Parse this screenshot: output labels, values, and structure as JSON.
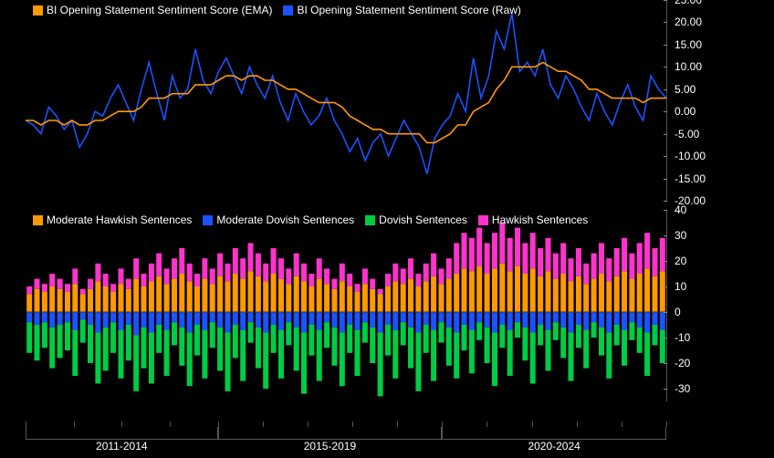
{
  "colors": {
    "background": "#000000",
    "text": "#ffffff",
    "axis": "#555555",
    "ema": "#ff9900",
    "raw": "#1a53ff",
    "mod_hawkish": "#ff9900",
    "mod_dovish": "#1a53ff",
    "dovish": "#00cc44",
    "hawkish": "#ff33cc"
  },
  "top_chart": {
    "type": "line",
    "legend": [
      {
        "label": "BI Opening Statement Sentiment Score (EMA)",
        "color": "#ff9900"
      },
      {
        "label": "BI Opening Statement Sentiment Score (Raw)",
        "color": "#1a53ff"
      }
    ],
    "ylim": [
      -20,
      25
    ],
    "ytick_step": 5,
    "yticks": [
      25,
      20,
      15,
      10,
      5,
      0,
      -5,
      -10,
      -15,
      -20
    ],
    "line_width_raw": 1.6,
    "line_width_ema": 1.6,
    "raw": [
      -2,
      -3,
      -5,
      1,
      -1,
      -4,
      -2,
      -8,
      -5,
      0,
      -1,
      3,
      6,
      2,
      -2,
      5,
      11,
      4,
      -2,
      8,
      3,
      5,
      14,
      7,
      4,
      9,
      12,
      8,
      4,
      10,
      6,
      3,
      8,
      2,
      -2,
      4,
      0,
      -3,
      -1,
      3,
      -2,
      -5,
      -9,
      -6,
      -11,
      -7,
      -5,
      -10,
      -6,
      -2,
      -5,
      -8,
      -14,
      -6,
      -3,
      -1,
      4,
      0,
      12,
      3,
      8,
      18,
      14,
      22,
      9,
      11,
      8,
      14,
      6,
      3,
      8,
      5,
      1,
      -2,
      4,
      0,
      -3,
      2,
      6,
      1,
      -2,
      8,
      5,
      3
    ],
    "ema": [
      -2,
      -2,
      -3,
      -2,
      -2,
      -3,
      -2,
      -3,
      -3,
      -2,
      -2,
      -1,
      0,
      0,
      0,
      1,
      3,
      3,
      3,
      4,
      4,
      4,
      6,
      6,
      6,
      7,
      8,
      8,
      7,
      8,
      8,
      7,
      7,
      6,
      5,
      5,
      4,
      3,
      2,
      2,
      2,
      1,
      -1,
      -2,
      -3,
      -4,
      -4,
      -5,
      -5,
      -5,
      -5,
      -5,
      -7,
      -7,
      -6,
      -5,
      -3,
      -3,
      0,
      1,
      2,
      5,
      7,
      10,
      10,
      10,
      10,
      11,
      10,
      9,
      9,
      8,
      7,
      5,
      5,
      4,
      3,
      3,
      3,
      3,
      2,
      3,
      3,
      3
    ]
  },
  "bottom_chart": {
    "type": "stacked-bar-diverging",
    "legend": [
      {
        "label": "Moderate Hawkish Sentences",
        "color": "#ff9900"
      },
      {
        "label": "Moderate Dovish Sentences",
        "color": "#1a53ff"
      },
      {
        "label": "Dovish Sentences",
        "color": "#00cc44"
      },
      {
        "label": "Hawkish Sentences",
        "color": "#ff33cc"
      }
    ],
    "ylim": [
      -35,
      40
    ],
    "yticks": [
      40,
      30,
      20,
      10,
      0,
      -10,
      -20,
      -30
    ],
    "bar_width": 0.72,
    "mod_hawkish": [
      7,
      9,
      8,
      10,
      9,
      8,
      11,
      7,
      9,
      12,
      10,
      8,
      11,
      9,
      13,
      10,
      12,
      14,
      11,
      13,
      15,
      12,
      10,
      13,
      11,
      14,
      12,
      15,
      13,
      16,
      14,
      12,
      15,
      13,
      11,
      14,
      12,
      10,
      13,
      11,
      9,
      12,
      10,
      8,
      11,
      9,
      7,
      10,
      12,
      11,
      13,
      10,
      12,
      14,
      11,
      13,
      15,
      17,
      16,
      18,
      15,
      17,
      19,
      16,
      18,
      15,
      17,
      14,
      16,
      13,
      15,
      12,
      14,
      11,
      13,
      15,
      12,
      14,
      16,
      13,
      15,
      17,
      14,
      16
    ],
    "hawkish": [
      3,
      4,
      3,
      5,
      4,
      3,
      6,
      2,
      4,
      7,
      5,
      3,
      6,
      4,
      8,
      5,
      7,
      9,
      6,
      8,
      10,
      7,
      5,
      8,
      6,
      9,
      7,
      10,
      8,
      11,
      9,
      7,
      10,
      8,
      6,
      9,
      7,
      5,
      8,
      6,
      4,
      7,
      5,
      3,
      6,
      4,
      2,
      5,
      7,
      6,
      8,
      5,
      7,
      9,
      6,
      8,
      12,
      14,
      13,
      15,
      12,
      14,
      16,
      13,
      15,
      12,
      14,
      11,
      13,
      10,
      12,
      9,
      11,
      8,
      10,
      12,
      9,
      11,
      13,
      10,
      12,
      14,
      11,
      13
    ],
    "mod_dovish": [
      4,
      5,
      4,
      6,
      5,
      4,
      7,
      3,
      5,
      8,
      6,
      4,
      7,
      5,
      9,
      6,
      8,
      5,
      7,
      4,
      6,
      8,
      5,
      7,
      4,
      6,
      8,
      5,
      7,
      4,
      6,
      8,
      5,
      7,
      4,
      6,
      8,
      5,
      7,
      4,
      6,
      8,
      5,
      7,
      4,
      6,
      8,
      5,
      7,
      4,
      6,
      8,
      5,
      7,
      4,
      6,
      8,
      5,
      7,
      4,
      6,
      8,
      5,
      7,
      4,
      6,
      8,
      5,
      7,
      4,
      6,
      8,
      5,
      7,
      4,
      6,
      8,
      5,
      7,
      4,
      6,
      8,
      5,
      7
    ],
    "dovish": [
      12,
      14,
      10,
      16,
      13,
      11,
      18,
      9,
      15,
      20,
      17,
      12,
      19,
      14,
      22,
      16,
      20,
      11,
      18,
      9,
      15,
      21,
      12,
      19,
      10,
      17,
      23,
      13,
      20,
      8,
      16,
      22,
      11,
      19,
      9,
      17,
      24,
      12,
      20,
      10,
      15,
      21,
      11,
      18,
      8,
      14,
      25,
      12,
      19,
      9,
      16,
      23,
      11,
      20,
      8,
      15,
      18,
      10,
      17,
      7,
      14,
      21,
      9,
      18,
      6,
      13,
      20,
      8,
      16,
      7,
      12,
      19,
      9,
      15,
      6,
      11,
      18,
      8,
      14,
      7,
      10,
      17,
      8,
      13
    ]
  },
  "x_axis": {
    "ranges": [
      {
        "label": "2011-2014",
        "start": 0.0,
        "end": 0.3
      },
      {
        "label": "2015-2019",
        "start": 0.3,
        "end": 0.65
      },
      {
        "label": "2020-2024",
        "start": 0.65,
        "end": 1.0
      }
    ],
    "year_ticks": [
      0.0,
      0.075,
      0.15,
      0.225,
      0.3,
      0.37,
      0.44,
      0.51,
      0.58,
      0.65,
      0.72,
      0.79,
      0.86,
      0.93,
      1.0
    ]
  }
}
